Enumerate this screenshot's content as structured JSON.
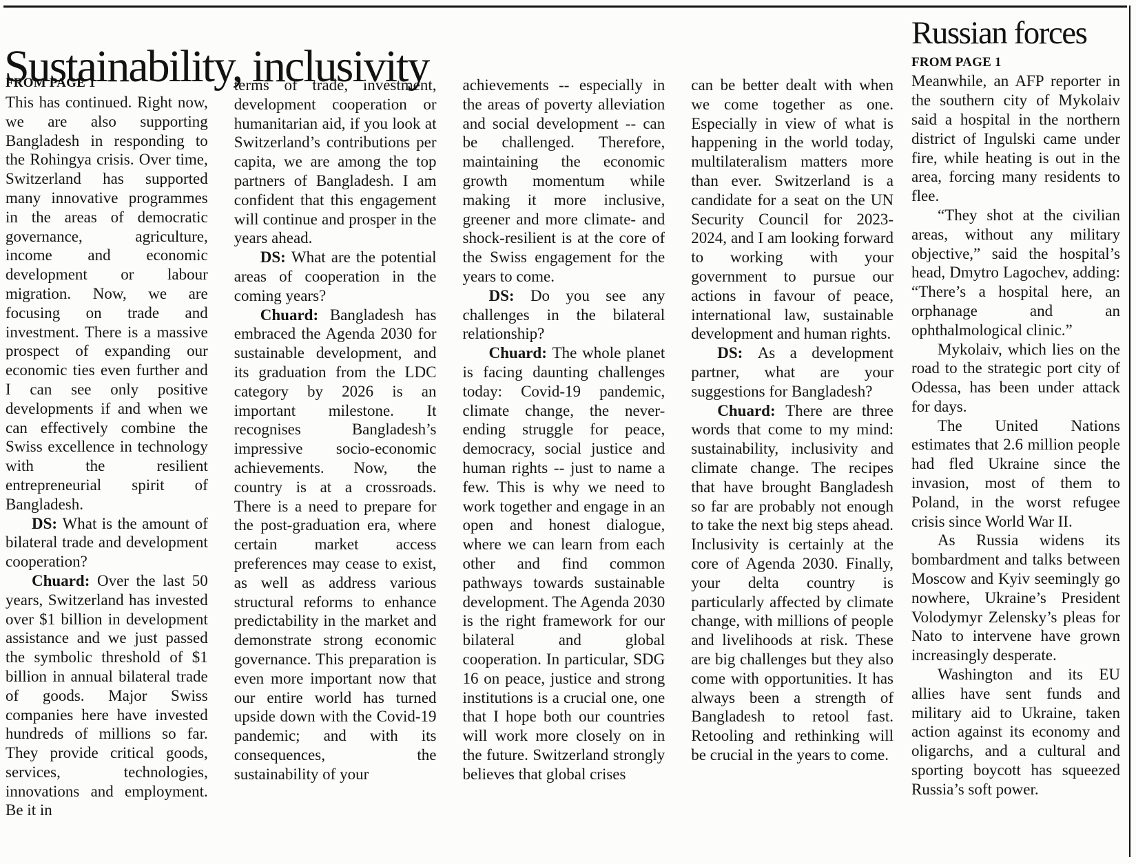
{
  "colors": {
    "background": "#fcfcfa",
    "text": "#161616",
    "rules": "#111111"
  },
  "main_article": {
    "headline": "Sustainability, inclusivity",
    "kicker": "FROM PAGE 1",
    "columns": [
      {
        "paragraphs": [
          {
            "lead": "",
            "indent": false,
            "text": "This has continued. Right now, we are also supporting Bangladesh in responding to the Rohingya crisis. Over time, Switzerland has supported many innovative programmes in the areas of democratic governance, agriculture, income and economic development or labour migration. Now, we are focusing on trade and investment. There is a massive prospect of expanding our economic ties even further and I can see only positive developments if and when we can effectively combine the Swiss excellence in technology with the resilient entrepreneurial spirit of Bangladesh."
          },
          {
            "lead": "DS:",
            "indent": true,
            "text": "What is the amount of bilateral trade and development cooperation?"
          },
          {
            "lead": "Chuard:",
            "indent": true,
            "text": "Over the last 50 years, Switzerland has invested over $1 billion in development assistance and we just passed the symbolic threshold of $1 billion in annual bilateral trade of goods. Major Swiss companies here have invested hundreds of millions so far. They provide critical goods, services, technologies, innovations and employment. Be it in"
          }
        ]
      },
      {
        "paragraphs": [
          {
            "lead": "",
            "indent": false,
            "text": "terms of trade, investment, development cooperation or humanitarian aid, if you look at Switzerland’s contributions per capita, we are among the top partners of Bangladesh. I am confident that this engagement will continue and prosper in the years ahead."
          },
          {
            "lead": "DS:",
            "indent": true,
            "text": "What are the potential areas of cooperation in the coming years?"
          },
          {
            "lead": "Chuard:",
            "indent": true,
            "text": "Bangladesh has embraced the Agenda 2030 for sustainable development, and its graduation from the LDC category by 2026 is an important milestone. It recognises Bangladesh’s impressive socio-economic achievements. Now, the country is at a crossroads. There is a need to prepare for the post-graduation era, where certain market access preferences may cease to exist, as well as address various structural reforms to enhance predictability in the market and demonstrate strong economic governance. This preparation is even more important now that our entire world has turned upside down with the Covid-19 pandemic; and with its consequences, the sustainability of your"
          }
        ]
      },
      {
        "paragraphs": [
          {
            "lead": "",
            "indent": false,
            "text": "achievements -- especially in the areas of poverty alleviation and social development -- can be challenged. Therefore, maintaining the economic growth momentum while making it more inclusive, greener and more climate- and shock-resilient is at the core of the Swiss engagement for the years to come."
          },
          {
            "lead": "DS:",
            "indent": true,
            "text": "Do you see any challenges in the bilateral relationship?"
          },
          {
            "lead": "Chuard:",
            "indent": true,
            "text": "The whole planet is facing daunting challenges today: Covid-19 pandemic, climate change, the never-ending struggle for peace, democracy, social justice and human rights -- just to name a few. This is why we need to work together and engage in an open and honest dialogue, where we can learn from each other and find common pathways towards sustainable development. The Agenda 2030 is the right framework for our bilateral and global cooperation. In particular, SDG 16 on peace, justice and strong institutions is a crucial one, one that I hope both our countries will work more closely on in the future. Switzerland strongly believes that global crises"
          }
        ]
      },
      {
        "paragraphs": [
          {
            "lead": "",
            "indent": false,
            "text": "can be better dealt with when we come together as one. Especially in view of what is happening in the world today, multilateralism matters more than ever. Switzerland is a candidate for a seat on the UN Security Council for 2023-2024, and I am looking forward to working with your government to pursue our actions in favour of peace, international law, sustainable development and human rights."
          },
          {
            "lead": "DS:",
            "indent": true,
            "text": "As a development partner, what are your suggestions for Bangladesh?"
          },
          {
            "lead": "Chuard:",
            "indent": true,
            "text": "There are three words that come to my mind: sustainability, inclusivity and climate change. The recipes that have brought Bangladesh so far are probably not enough to take the next big steps ahead. Inclusivity is certainly at the core of Agenda 2030. Finally, your delta country is particularly affected by climate change, with millions of people and livelihoods at risk. These are big challenges but they also come with opportunities. It has always been a strength of Bangladesh to retool fast. Retooling and rethinking will be crucial in the years to come."
          }
        ]
      }
    ]
  },
  "side_article": {
    "headline": "Russian forces",
    "kicker": "FROM PAGE 1",
    "paragraphs": [
      {
        "indent": false,
        "text": "Meanwhile, an AFP reporter in the southern city of Mykolaiv said a hospital in the northern district of Ingulski came under fire, while heating is out in the area, forcing many residents to flee."
      },
      {
        "indent": true,
        "text": "“They shot at the civilian areas, without any military objective,” said the hospital’s head, Dmytro Lagochev, adding: “There’s a hospital here, an orphanage and an ophthalmological clinic.”"
      },
      {
        "indent": true,
        "text": "Mykolaiv, which lies on the road to the strategic port city of Odessa, has been under attack for days."
      },
      {
        "indent": true,
        "text": "The United Nations estimates that 2.6 million people had fled Ukraine since the invasion, most of them to Poland, in the worst refugee crisis since World War II."
      },
      {
        "indent": true,
        "text": "As Russia widens its bombardment and talks between Moscow and Kyiv seemingly go nowhere, Ukraine’s President Volodymyr Zelensky’s pleas for Nato to intervene have grown increasingly desperate."
      },
      {
        "indent": true,
        "text": "Washington and its EU allies have sent funds and military aid to Ukraine, taken action against its economy and oligarchs, and a cultural and sporting boycott has squeezed Russia’s soft power."
      }
    ]
  }
}
